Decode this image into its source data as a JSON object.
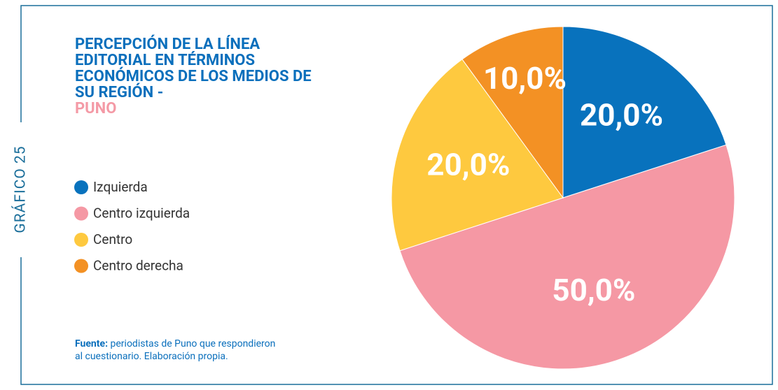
{
  "chart_data": {
    "type": "pie",
    "figure_label": "GRÁFICO 25",
    "title": "PERCEPCIÓN DE LA LÍNEA EDITORIAL EN TÉRMINOS ECONÓMICOS DE LOS MEDIOS DE SU REGIÓN  -",
    "subtitle": "PUNO",
    "categories": [
      "Izquierda",
      "Centro izquierda",
      "Centro",
      "Centro derecha"
    ],
    "values": [
      20,
      50,
      20,
      10
    ],
    "value_labels": [
      "20,0%",
      "50,0%",
      "20,0%",
      "10,0%"
    ],
    "colors": [
      "#0872bd",
      "#f598a4",
      "#fec93f",
      "#f39124"
    ],
    "source_label": "Fuente:",
    "source": "periodistas de Puno que respondieron al cuestionario. Elaboración propia."
  }
}
